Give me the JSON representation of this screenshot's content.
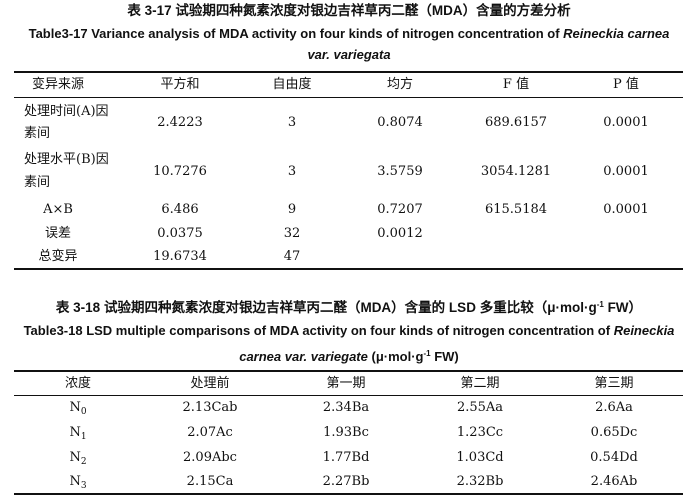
{
  "table1": {
    "caption_cn": "表 3-17 试验期四种氮素浓度对银边吉祥草丙二醛（MDA）含量的方差分析",
    "caption_en_line1": "Table3-17 Variance analysis of MDA activity on four kinds of nitrogen concentration of",
    "caption_en_italic1": "Reineckia carnea",
    "caption_en_line2_italic": "var. variegata",
    "headers": [
      "变异来源",
      "平方和",
      "自由度",
      "均方",
      "F 值",
      "P 值"
    ],
    "rows": [
      {
        "source_l1": "处理时间(A)因",
        "source_l2": "素间",
        "ss": "2.4223",
        "df": "3",
        "ms": "0.8074",
        "f": "689.6157",
        "p": "0.0001"
      },
      {
        "source_l1": "处理水平(B)因",
        "source_l2": "素间",
        "ss": "10.7276",
        "df": "3",
        "ms": "3.5759",
        "f": "3054.1281",
        "p": "0.0001"
      },
      {
        "source": "A×B",
        "ss": "6.486",
        "df": "9",
        "ms": "0.7207",
        "f": "615.5184",
        "p": "0.0001"
      },
      {
        "source": "误差",
        "ss": "0.0375",
        "df": "32",
        "ms": "0.0012",
        "f": "",
        "p": ""
      },
      {
        "source": "总变异",
        "ss": "19.6734",
        "df": "47",
        "ms": "",
        "f": "",
        "p": ""
      }
    ]
  },
  "table2": {
    "caption_cn_a": "表 3-18 试验期四种氮素浓度对银边吉祥草丙二醛（MDA）含量的 LSD 多重比较（μ·mol·g",
    "caption_cn_sup": "-1",
    "caption_cn_b": " FW）",
    "caption_en_line1a": "Table3-18 LSD multiple comparisons of MDA activity on four kinds of nitrogen concentration of",
    "caption_en_italic1": "Reineckia",
    "caption_en_italic2": "carnea var. variegate",
    "caption_en_line2_a": " (μ·mol·g",
    "caption_en_line2_sup": "-1",
    "caption_en_line2_b": " FW)",
    "headers": [
      "浓度",
      "处理前",
      "第一期",
      "第二期",
      "第三期"
    ],
    "rows": [
      {
        "n": "N",
        "sub": "0",
        "pre": "2.13Cab",
        "p1": "2.34Ba",
        "p2": "2.55Aa",
        "p3": "2.6Aa"
      },
      {
        "n": "N",
        "sub": "1",
        "pre": "2.07Ac",
        "p1": "1.93Bc",
        "p2": "1.23Cc",
        "p3": "0.65Dc"
      },
      {
        "n": "N",
        "sub": "2",
        "pre": "2.09Abc",
        "p1": "1.77Bd",
        "p2": "1.03Cd",
        "p3": "0.54Dd"
      },
      {
        "n": "N",
        "sub": "3",
        "pre": "2.15Ca",
        "p1": "2.27Bb",
        "p2": "2.32Bb",
        "p3": "2.46Ab"
      }
    ]
  }
}
